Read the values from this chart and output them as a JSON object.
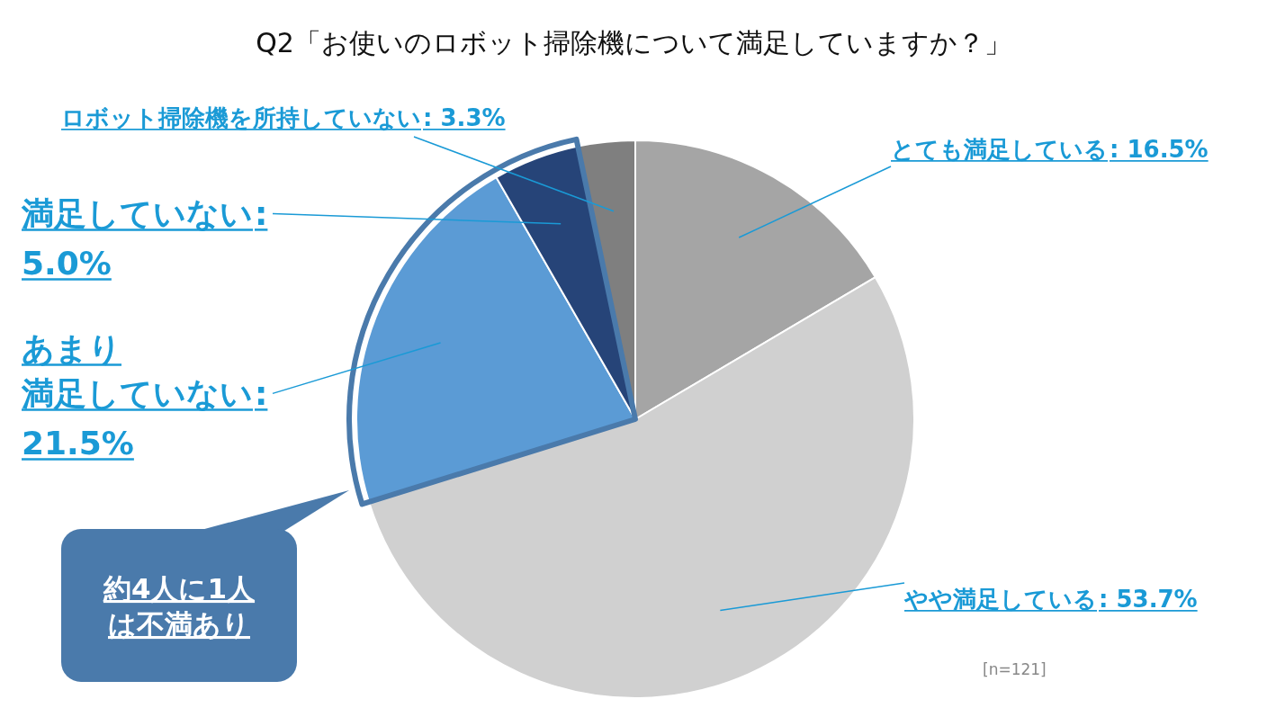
{
  "chart_data": {
    "type": "pie",
    "title": "Q2「お使いのロボット掃除機について満足していますか？」",
    "categories": [
      "とても満足している",
      "やや満足している",
      "あまり満足していない",
      "満足していない",
      "ロボット掃除機を所持していない"
    ],
    "values": [
      16.5,
      53.7,
      21.5,
      5.0,
      3.3
    ],
    "value_labels": [
      ": 16.5%",
      ": 53.7%",
      ": 21.5%",
      ": 5.0%",
      ": 3.3%"
    ],
    "colors": [
      "#a5a5a5",
      "#d0d0d0",
      "#5b9bd5",
      "#264478",
      "#7f7f7f"
    ],
    "legend": false,
    "annotations": [
      "約4人に1人は不満あり",
      "[n=121]"
    ]
  }
}
